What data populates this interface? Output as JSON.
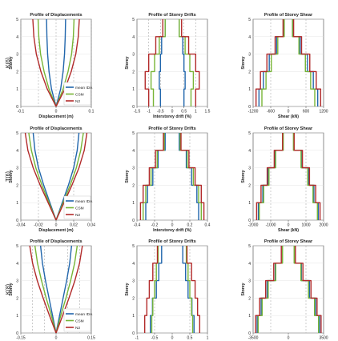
{
  "chart_data": [
    {
      "type": "line",
      "row_label": "K(6)",
      "title": "Profile of Displacements",
      "xlabel": "Displacement (m)",
      "ylabel": "Storey",
      "xlim": [
        -0.1,
        0.1
      ],
      "ylim": [
        0,
        5
      ],
      "xticks": [
        -0.1,
        0,
        0.1
      ],
      "xtick_labels": [
        "-0.1",
        "0",
        "0.1"
      ],
      "yticks": [
        0,
        1,
        2,
        3,
        4,
        5
      ],
      "grid_x": [
        -0.1,
        -0.05,
        0,
        0.05,
        0.1
      ],
      "legend": "bottom-right",
      "series": [
        {
          "name": "mean IDA",
          "color": "#2166ac",
          "x": [
            0,
            0.013,
            0.02,
            0.024,
            0.026,
            0.027
          ],
          "y": [
            0,
            1,
            2,
            3,
            4,
            5
          ],
          "mirror": true
        },
        {
          "name": "CSM",
          "color": "#77b536",
          "x": [
            0,
            0.02,
            0.034,
            0.044,
            0.049,
            0.051
          ],
          "y": [
            0,
            1,
            2,
            3,
            4,
            5
          ],
          "mirror": true
        },
        {
          "name": "N2",
          "color": "#b22a2a",
          "x": [
            0,
            0.025,
            0.043,
            0.056,
            0.063,
            0.066
          ],
          "y": [
            0,
            1,
            2,
            3,
            4,
            5
          ],
          "mirror": true
        }
      ]
    },
    {
      "type": "step",
      "title": "Profile of Storey Drifts",
      "xlabel": "Interstorey drift (%)",
      "ylabel": "Storey",
      "xlim": [
        -1.5,
        1.5
      ],
      "ylim": [
        0,
        5
      ],
      "xticks": [
        -1.5,
        -1,
        -0.5,
        0,
        0.5,
        1,
        1.5
      ],
      "xtick_labels": [
        "-1.5",
        "-1",
        "-0.5",
        "0",
        "0.5",
        "1",
        "1.5"
      ],
      "yticks": [
        0,
        1,
        2,
        3,
        4,
        5
      ],
      "grid_x": [
        -1,
        -0.5,
        0.5,
        1
      ],
      "series": [
        {
          "name": "mean IDA",
          "color": "#2166ac",
          "values": [
            0.5,
            0.55,
            0.5,
            0.45,
            0.3
          ],
          "mirror": true
        },
        {
          "name": "CSM",
          "color": "#77b536",
          "values": [
            0.8,
            0.9,
            0.75,
            0.55,
            0.3
          ],
          "mirror": true
        },
        {
          "name": "N2",
          "color": "#b22a2a",
          "values": [
            1.0,
            1.15,
            1.0,
            0.7,
            0.4
          ],
          "mirror": true
        }
      ]
    },
    {
      "type": "step",
      "title": "Profile of Storey Shear",
      "xlabel": "Shear (kN)",
      "ylabel": "Storey",
      "xlim": [
        -1200,
        1200
      ],
      "ylim": [
        0,
        5
      ],
      "xticks": [
        -1200,
        -600,
        0,
        600,
        1200
      ],
      "xtick_labels": [
        "-1200",
        "-600",
        "0",
        "600",
        "1200"
      ],
      "yticks": [
        0,
        1,
        2,
        3,
        4,
        5
      ],
      "grid_x": [
        -600,
        600
      ],
      "series": [
        {
          "name": "mean IDA",
          "color": "#2166ac",
          "values": [
            1000,
            850,
            650,
            400,
            150
          ],
          "mirror": true
        },
        {
          "name": "CSM",
          "color": "#77b536",
          "values": [
            900,
            760,
            580,
            360,
            140
          ],
          "mirror": true
        },
        {
          "name": "N2",
          "color": "#b22a2a",
          "values": [
            1100,
            950,
            730,
            450,
            180
          ],
          "mirror": true
        }
      ]
    },
    {
      "type": "line",
      "row_label": "T(6)",
      "title": "Profile of Displacements",
      "xlabel": "Displacement (m)",
      "ylabel": "Storey",
      "xlim": [
        -0.04,
        0.04
      ],
      "ylim": [
        0,
        5
      ],
      "xticks": [
        -0.04,
        -0.02,
        0,
        0.02,
        0.04
      ],
      "xtick_labels": [
        "-0.04",
        "-0.02",
        "0",
        "0.02",
        "0.04"
      ],
      "yticks": [
        0,
        1,
        2,
        3,
        4,
        5
      ],
      "grid_x": [
        -0.02,
        0.02
      ],
      "legend": "bottom-right",
      "series": [
        {
          "name": "mean IDA",
          "color": "#2166ac",
          "x": [
            0,
            0.007,
            0.014,
            0.02,
            0.024,
            0.026
          ],
          "y": [
            0,
            1,
            2,
            3,
            4,
            5
          ],
          "mirror": true
        },
        {
          "name": "CSM",
          "color": "#77b536",
          "x": [
            0,
            0.008,
            0.016,
            0.023,
            0.028,
            0.031
          ],
          "y": [
            0,
            1,
            2,
            3,
            4,
            5
          ],
          "mirror": true
        },
        {
          "name": "N2",
          "color": "#b22a2a",
          "x": [
            0,
            0.009,
            0.018,
            0.026,
            0.032,
            0.035
          ],
          "y": [
            0,
            1,
            2,
            3,
            4,
            5
          ],
          "mirror": true
        }
      ]
    },
    {
      "type": "step",
      "title": "Profile of Storey Drifts",
      "xlabel": "Interstorey drift (%)",
      "ylabel": "Storey",
      "xlim": [
        -0.4,
        0.4
      ],
      "ylim": [
        0,
        5
      ],
      "xticks": [
        -0.4,
        -0.2,
        0,
        0.2,
        0.4
      ],
      "xtick_labels": [
        "-0.4",
        "-0.2",
        "0",
        "0.2",
        "0.4"
      ],
      "yticks": [
        0,
        1,
        2,
        3,
        4,
        5
      ],
      "grid_x": [
        -0.2,
        0.2
      ],
      "series": [
        {
          "name": "mean IDA",
          "color": "#2166ac",
          "values": [
            0.3,
            0.28,
            0.22,
            0.16,
            0.08
          ],
          "mirror": true
        },
        {
          "name": "CSM",
          "color": "#77b536",
          "values": [
            0.33,
            0.3,
            0.24,
            0.17,
            0.09
          ],
          "mirror": true
        },
        {
          "name": "N2",
          "color": "#b22a2a",
          "values": [
            0.36,
            0.33,
            0.26,
            0.19,
            0.1
          ],
          "mirror": true
        }
      ]
    },
    {
      "type": "step",
      "title": "Profile of Storey Shear",
      "xlabel": "Shear (kN)",
      "ylabel": "Storey",
      "xlim": [
        -2000,
        2000
      ],
      "ylim": [
        0,
        5
      ],
      "xticks": [
        -2000,
        -1000,
        0,
        1000,
        2000
      ],
      "xtick_labels": [
        "-2000",
        "-1000",
        "0",
        "1000",
        "2000"
      ],
      "yticks": [
        0,
        1,
        2,
        3,
        4,
        5
      ],
      "grid_x": [
        -1000,
        1000
      ],
      "series": [
        {
          "name": "mean IDA",
          "color": "#2166ac",
          "values": [
            1700,
            1450,
            1150,
            750,
            300
          ],
          "mirror": true
        },
        {
          "name": "CSM",
          "color": "#77b536",
          "values": [
            1650,
            1400,
            1100,
            720,
            290
          ],
          "mirror": true
        },
        {
          "name": "N2",
          "color": "#b22a2a",
          "values": [
            1800,
            1550,
            1200,
            800,
            330
          ],
          "mirror": true
        }
      ]
    },
    {
      "type": "line",
      "row_label": "K(8)",
      "title": "Profile of Displacements",
      "xlabel": "Displacement (m)",
      "ylabel": "Storey",
      "xlim": [
        -0.15,
        0.15
      ],
      "ylim": [
        0,
        5
      ],
      "xticks": [
        -0.15,
        0,
        0.15
      ],
      "xtick_labels": [
        "-0.15",
        "0",
        "0.15"
      ],
      "yticks": [
        0,
        1,
        2,
        3,
        4,
        5
      ],
      "grid_x": [
        -0.1,
        -0.05,
        0.05,
        0.1
      ],
      "legend": "bottom-right",
      "series": [
        {
          "name": "mean IDA",
          "color": "#2166ac",
          "x": [
            0,
            0.015,
            0.03,
            0.045,
            0.058,
            0.066
          ],
          "y": [
            0,
            1,
            2,
            3,
            4,
            5
          ],
          "mirror": true
        },
        {
          "name": "CSM",
          "color": "#77b536",
          "x": [
            0,
            0.02,
            0.042,
            0.062,
            0.079,
            0.09
          ],
          "y": [
            0,
            1,
            2,
            3,
            4,
            5
          ],
          "mirror": true
        },
        {
          "name": "N2",
          "color": "#b22a2a",
          "x": [
            0,
            0.028,
            0.055,
            0.08,
            0.1,
            0.112
          ],
          "y": [
            0,
            1,
            2,
            3,
            4,
            5
          ],
          "mirror": true
        }
      ]
    },
    {
      "type": "step",
      "title": "Profile of Storey Drifts",
      "xlabel": "Interstorey drift (%)",
      "ylabel": "Storey",
      "xlim": [
        -1,
        1
      ],
      "ylim": [
        0,
        5
      ],
      "xticks": [
        -1,
        -0.5,
        0,
        0.5,
        1
      ],
      "xtick_labels": [
        "-1",
        "-0.5",
        "0",
        "0.5",
        "1"
      ],
      "yticks": [
        0,
        1,
        2,
        3,
        4,
        5
      ],
      "grid_x": [
        -0.5,
        0.5
      ],
      "series": [
        {
          "name": "mean IDA",
          "color": "#2166ac",
          "values": [
            0.62,
            0.56,
            0.45,
            0.38,
            0.3
          ],
          "mirror": true
        },
        {
          "name": "CSM",
          "color": "#77b536",
          "values": [
            0.58,
            0.55,
            0.5,
            0.45,
            0.4
          ],
          "mirror": true
        },
        {
          "name": "N2",
          "color": "#b22a2a",
          "values": [
            0.78,
            0.72,
            0.65,
            0.55,
            0.42
          ],
          "mirror": true
        }
      ]
    },
    {
      "type": "step",
      "title": "Profile of Storey Shear",
      "xlabel": "Shear (kN)",
      "ylabel": "Storey",
      "xlim": [
        -3500,
        3500
      ],
      "ylim": [
        0,
        5
      ],
      "xticks": [
        -3500,
        0,
        3500
      ],
      "xtick_labels": [
        "-3500",
        "0",
        "3500"
      ],
      "yticks": [
        0,
        1,
        2,
        3,
        4,
        5
      ],
      "grid_x": [
        -1750,
        1750
      ],
      "series": [
        {
          "name": "mean IDA",
          "color": "#2166ac",
          "values": [
            3100,
            2700,
            2100,
            1300,
            600
          ],
          "mirror": true
        },
        {
          "name": "CSM",
          "color": "#77b536",
          "values": [
            3000,
            2600,
            2000,
            1250,
            580
          ],
          "mirror": true
        },
        {
          "name": "N2",
          "color": "#b22a2a",
          "values": [
            3250,
            2850,
            2250,
            1450,
            700
          ],
          "mirror": true
        }
      ]
    }
  ]
}
